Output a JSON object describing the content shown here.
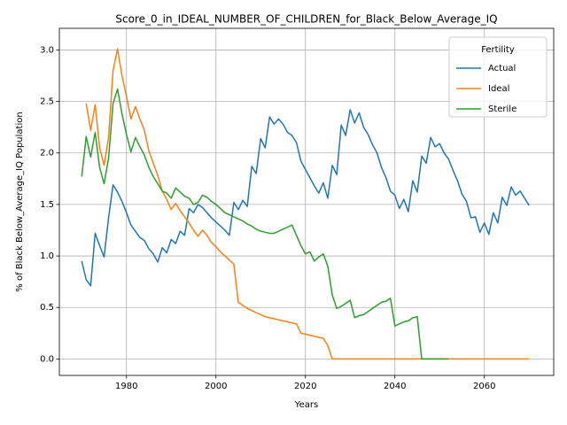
{
  "chart_data": {
    "type": "line",
    "title": "Score_0_in_IDEAL_NUMBER_OF_CHILDREN_for_Black_Below_Average_IQ",
    "xlabel": "Years",
    "ylabel": "% of Black Below_Average_IQ Population",
    "legend_title": "Fertility",
    "legend": "upper right",
    "grid": true,
    "xlim": [
      1965,
      2075.5
    ],
    "ylim": [
      -0.16,
      3.21
    ],
    "xticks": [
      1980,
      2000,
      2020,
      2040,
      2060
    ],
    "yticks": [
      {
        "value": 0,
        "label": "0.0"
      },
      0.5,
      {
        "value": 1,
        "label": "1.0"
      },
      1.5,
      {
        "value": 2,
        "label": "2.0"
      },
      2.5,
      {
        "value": 3,
        "label": "3.0"
      }
    ],
    "x": [
      1970,
      1971,
      1972,
      1973,
      1974,
      1975,
      1976,
      1977,
      1978,
      1979,
      1980,
      1981,
      1982,
      1983,
      1984,
      1985,
      1986,
      1987,
      1988,
      1989,
      1990,
      1991,
      1992,
      1993,
      1994,
      1995,
      1996,
      1997,
      1998,
      1999,
      2000,
      2001,
      2002,
      2003,
      2004,
      2005,
      2006,
      2007,
      2008,
      2009,
      2010,
      2011,
      2012,
      2013,
      2014,
      2015,
      2016,
      2017,
      2018,
      2019,
      2020,
      2021,
      2022,
      2023,
      2024,
      2025,
      2026,
      2027,
      2028,
      2029,
      2030,
      2031,
      2032,
      2033,
      2034,
      2035,
      2036,
      2037,
      2038,
      2039,
      2040,
      2041,
      2042,
      2043,
      2044,
      2045,
      2046,
      2047,
      2048,
      2049,
      2050,
      2051,
      2052,
      2053,
      2054,
      2055,
      2056,
      2057,
      2058,
      2059,
      2060,
      2061,
      2062,
      2063,
      2064,
      2065,
      2066,
      2067,
      2068,
      2069,
      2070
    ],
    "series": [
      {
        "name": "Actual",
        "color": "#1f77b4",
        "values": [
          0.95,
          0.77,
          0.71,
          1.22,
          1.1,
          0.99,
          1.37,
          1.69,
          1.62,
          1.53,
          1.42,
          1.3,
          1.24,
          1.18,
          1.15,
          1.07,
          1.02,
          0.94,
          1.08,
          1.03,
          1.16,
          1.12,
          1.24,
          1.2,
          1.46,
          1.42,
          1.5,
          1.47,
          1.42,
          1.37,
          1.33,
          1.29,
          1.25,
          1.2,
          1.52,
          1.45,
          1.54,
          1.48,
          1.87,
          1.8,
          2.14,
          2.05,
          2.35,
          2.28,
          2.33,
          2.28,
          2.2,
          2.17,
          2.1,
          1.92,
          1.84,
          1.76,
          1.68,
          1.61,
          1.71,
          1.56,
          1.88,
          1.79,
          2.27,
          2.17,
          2.42,
          2.29,
          2.39,
          2.25,
          2.18,
          2.08,
          2.0,
          1.86,
          1.76,
          1.63,
          1.59,
          1.46,
          1.55,
          1.43,
          1.73,
          1.62,
          1.97,
          1.9,
          2.15,
          2.06,
          2.09,
          2.0,
          1.94,
          1.83,
          1.73,
          1.6,
          1.53,
          1.37,
          1.38,
          1.23,
          1.32,
          1.21,
          1.42,
          1.32,
          1.57,
          1.49,
          1.67,
          1.59,
          1.63,
          1.56,
          1.49
        ]
      },
      {
        "name": "Ideal",
        "color": "#ff7f0e",
        "values": [
          null,
          2.48,
          2.22,
          2.47,
          2.05,
          1.88,
          2.15,
          2.8,
          3.01,
          2.75,
          2.55,
          2.33,
          2.45,
          2.33,
          2.22,
          2.02,
          1.9,
          1.78,
          1.63,
          1.55,
          1.45,
          1.51,
          1.44,
          1.38,
          1.32,
          1.25,
          1.19,
          1.25,
          1.2,
          1.13,
          1.09,
          1.04,
          1.0,
          0.96,
          0.92,
          0.55,
          0.52,
          0.49,
          0.47,
          0.45,
          0.43,
          0.41,
          0.4,
          0.39,
          0.38,
          0.37,
          0.36,
          0.35,
          0.34,
          0.25,
          0.24,
          0.23,
          0.22,
          0.21,
          0.2,
          0.13,
          0,
          0,
          0,
          0,
          0,
          0,
          0,
          0,
          0,
          0,
          0,
          0,
          0,
          0,
          0,
          0,
          0,
          0,
          0,
          0,
          0,
          0,
          0,
          0,
          0,
          0,
          0,
          0,
          0,
          0,
          0,
          0,
          0,
          0,
          0,
          0,
          0,
          0,
          0,
          0,
          0,
          0,
          0,
          0,
          0
        ]
      },
      {
        "name": "Sterile",
        "color": "#2ca02c",
        "values": [
          1.77,
          2.16,
          1.96,
          2.2,
          1.86,
          1.7,
          1.95,
          2.48,
          2.62,
          2.38,
          2.18,
          2.01,
          2.15,
          2.06,
          1.98,
          1.86,
          1.77,
          1.7,
          1.63,
          1.61,
          1.56,
          1.66,
          1.62,
          1.58,
          1.56,
          1.5,
          1.52,
          1.59,
          1.57,
          1.53,
          1.5,
          1.46,
          1.42,
          1.4,
          1.38,
          1.36,
          1.34,
          1.31,
          1.29,
          1.26,
          1.24,
          1.23,
          1.22,
          1.22,
          1.24,
          1.26,
          1.28,
          1.3,
          1.2,
          1.1,
          1.02,
          1.04,
          0.95,
          0.99,
          1.02,
          0.9,
          0.62,
          0.49,
          0.51,
          0.54,
          0.57,
          0.4,
          0.42,
          0.43,
          0.46,
          0.49,
          0.52,
          0.55,
          0.56,
          0.59,
          0.32,
          0.34,
          0.36,
          0.37,
          0.4,
          0.41,
          0,
          0,
          0,
          0,
          0,
          0,
          0,
          null,
          null,
          null,
          null,
          null,
          null,
          null,
          null,
          null,
          null,
          null,
          null,
          null,
          null,
          null,
          null,
          null,
          null
        ]
      }
    ]
  }
}
